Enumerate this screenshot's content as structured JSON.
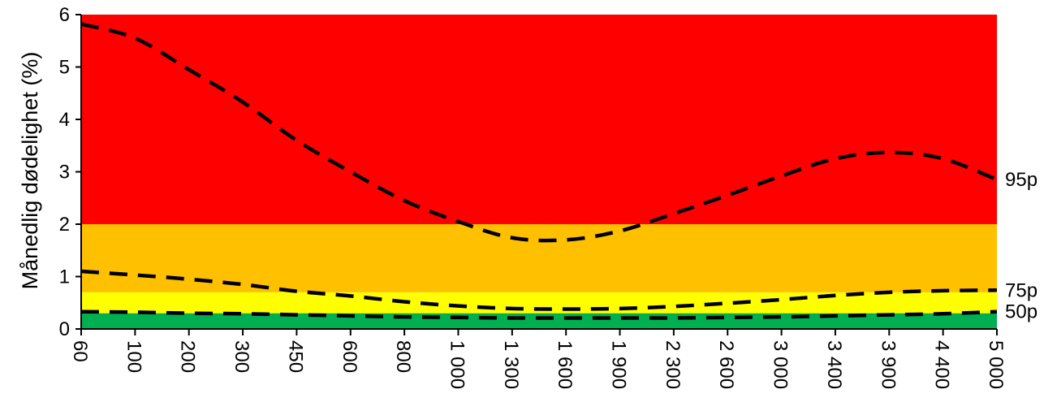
{
  "chart_data": {
    "type": "line",
    "ylabel": "Månedlig dødelighet (%)",
    "xlabel": "",
    "ylim": [
      0,
      6
    ],
    "yticks": [
      "0",
      "1",
      "2",
      "3",
      "4",
      "5",
      "6"
    ],
    "categories": [
      "60",
      "100",
      "200",
      "300",
      "450",
      "600",
      "800",
      "1 000",
      "1 300",
      "1 600",
      "1 900",
      "2 300",
      "2 600",
      "3 000",
      "3 400",
      "3 900",
      "4 400",
      "5 000"
    ],
    "bands": [
      {
        "from": 0,
        "to": 0.3,
        "color": "#00b050"
      },
      {
        "from": 0.3,
        "to": 0.7,
        "color": "#ffff00"
      },
      {
        "from": 0.7,
        "to": 2,
        "color": "#ffc000"
      },
      {
        "from": 2,
        "to": 6,
        "color": "#ff0000"
      }
    ],
    "series": [
      {
        "name": "95p",
        "style": "dashed",
        "color": "#000000",
        "values": [
          5.82,
          5.55,
          4.95,
          4.33,
          3.6,
          3.0,
          2.45,
          2.05,
          1.74,
          1.7,
          1.87,
          2.2,
          2.55,
          2.92,
          3.25,
          3.37,
          3.25,
          2.85
        ]
      },
      {
        "name": "75p",
        "style": "dashed",
        "color": "#000000",
        "values": [
          1.1,
          1.03,
          0.95,
          0.85,
          0.72,
          0.63,
          0.52,
          0.44,
          0.39,
          0.38,
          0.39,
          0.43,
          0.49,
          0.56,
          0.64,
          0.7,
          0.73,
          0.74
        ]
      },
      {
        "name": "50p",
        "style": "dashed",
        "color": "#000000",
        "values": [
          0.33,
          0.32,
          0.3,
          0.29,
          0.27,
          0.25,
          0.23,
          0.22,
          0.21,
          0.21,
          0.21,
          0.21,
          0.22,
          0.23,
          0.25,
          0.27,
          0.29,
          0.33
        ]
      }
    ],
    "grid": false,
    "legend": "none"
  }
}
